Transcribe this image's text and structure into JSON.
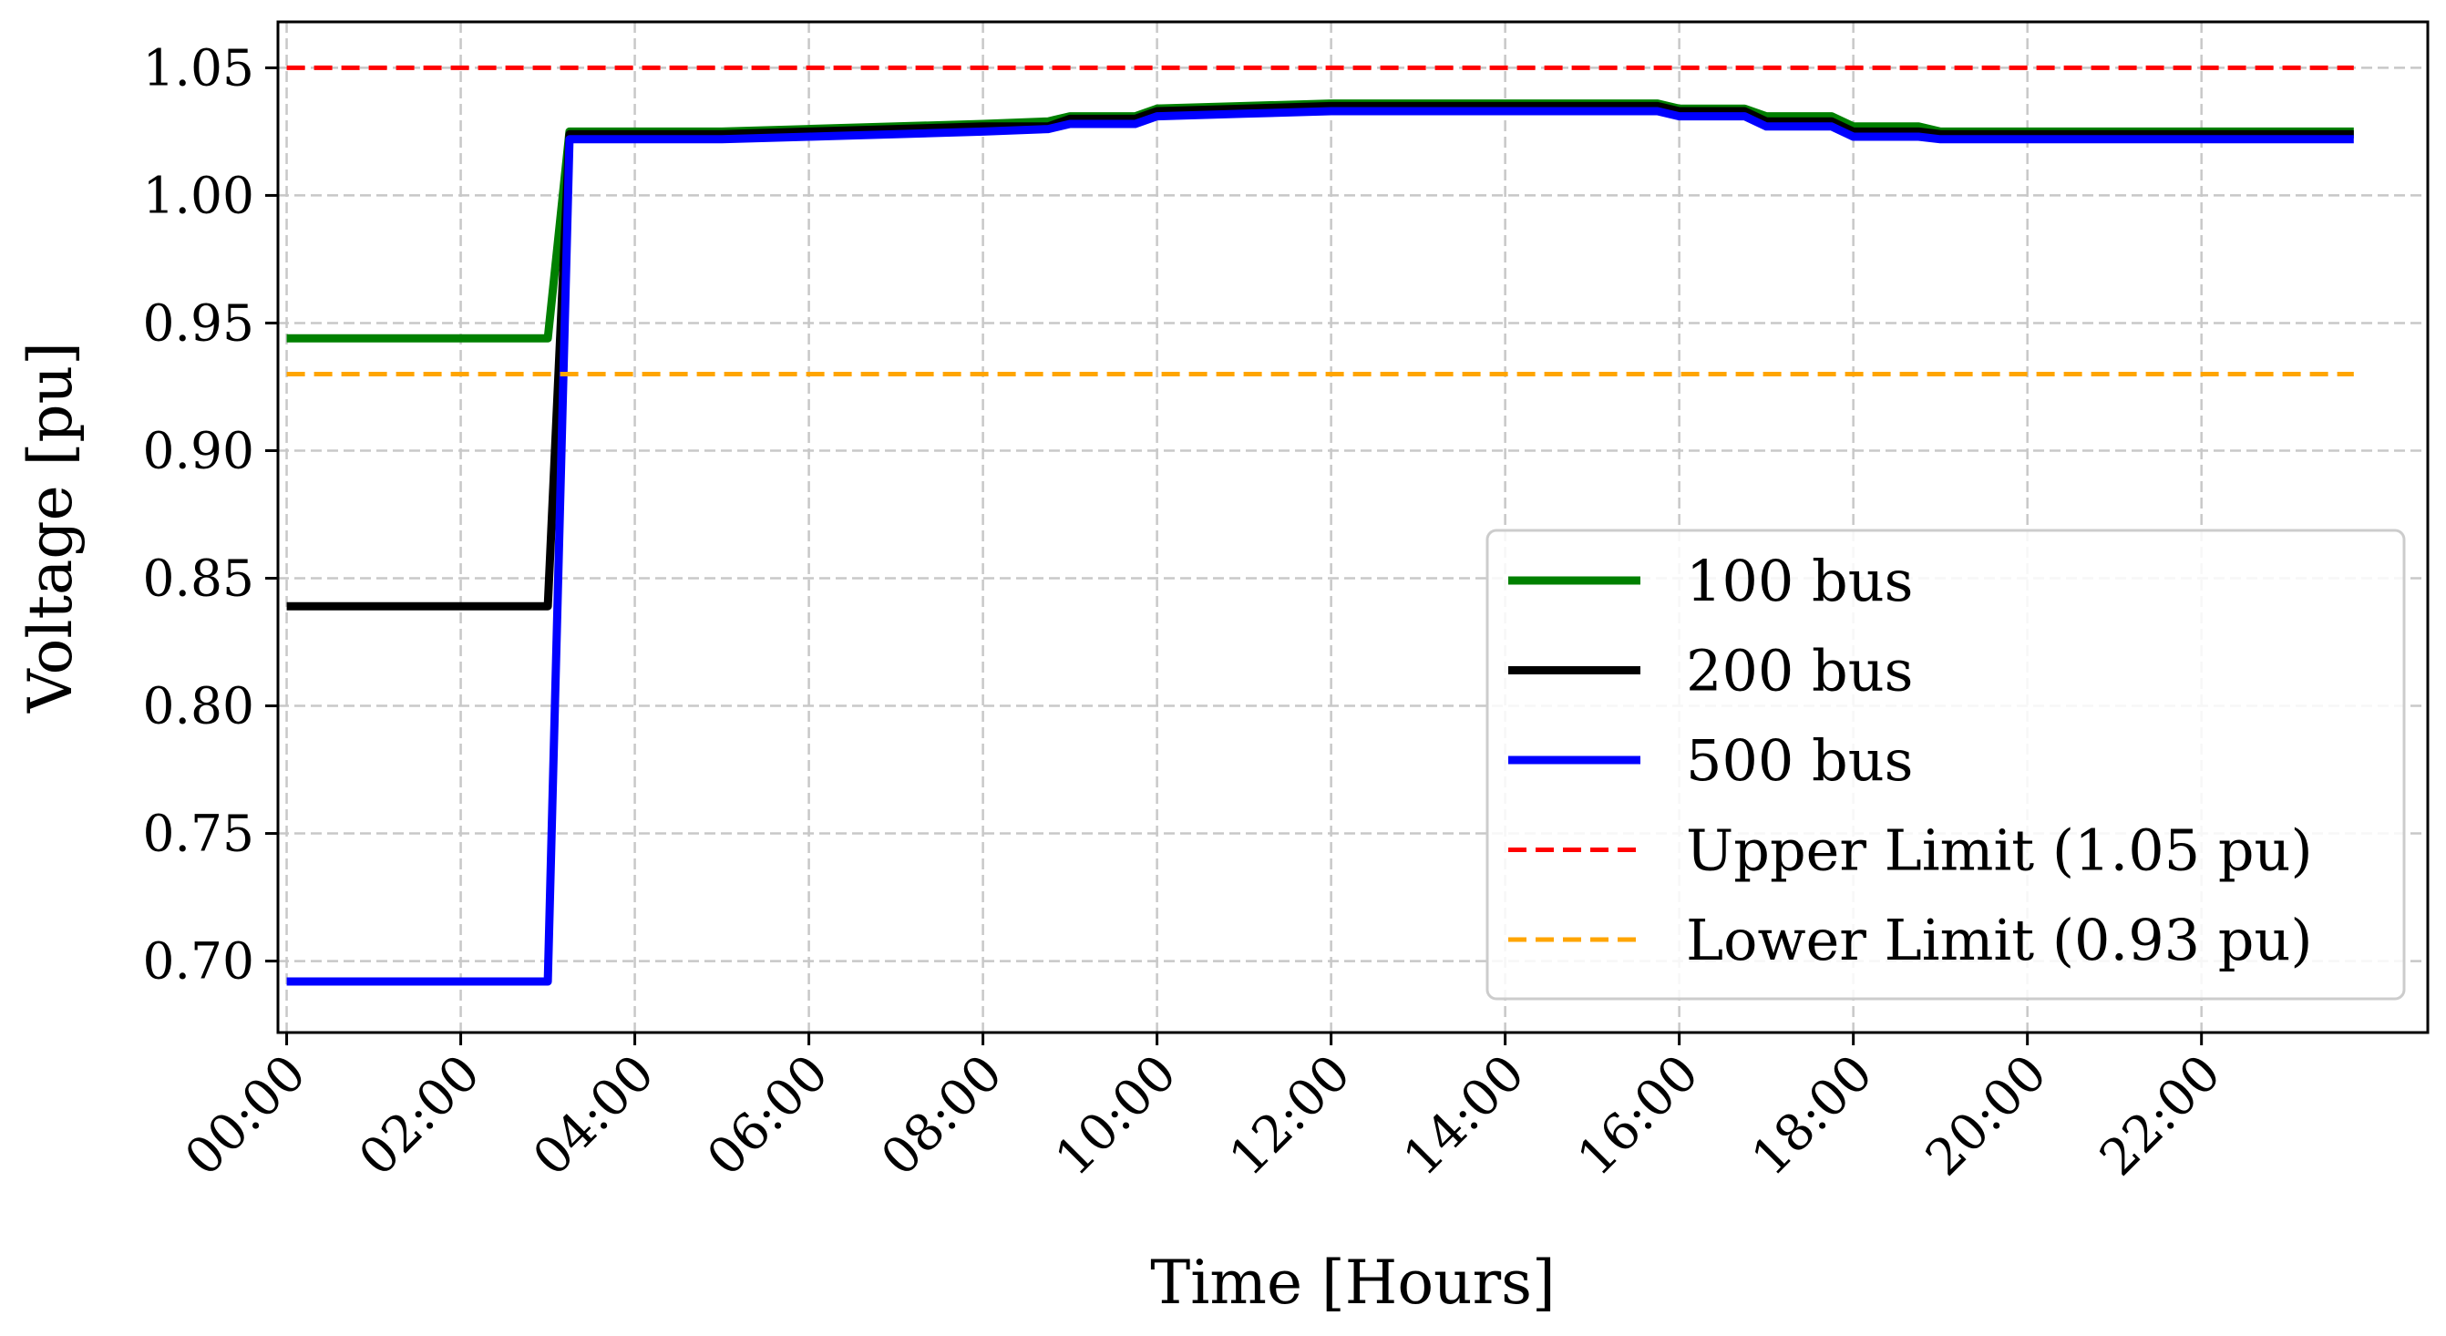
{
  "chart_data": {
    "type": "line",
    "xlabel": "Time [Hours]",
    "ylabel": "Voltage [pu]",
    "x_unit": "hours",
    "xlim": [
      -0.1,
      24.6
    ],
    "ylim": [
      0.672,
      1.068
    ],
    "grid": true,
    "legend_position": "center-right",
    "x_ticks": [
      {
        "value": 0,
        "label": "00:00"
      },
      {
        "value": 2,
        "label": "02:00"
      },
      {
        "value": 4,
        "label": "04:00"
      },
      {
        "value": 6,
        "label": "06:00"
      },
      {
        "value": 8,
        "label": "08:00"
      },
      {
        "value": 10,
        "label": "10:00"
      },
      {
        "value": 12,
        "label": "12:00"
      },
      {
        "value": 14,
        "label": "14:00"
      },
      {
        "value": 16,
        "label": "16:00"
      },
      {
        "value": 18,
        "label": "18:00"
      },
      {
        "value": 20,
        "label": "20:00"
      },
      {
        "value": 22,
        "label": "22:00"
      }
    ],
    "y_ticks": [
      {
        "value": 0.7,
        "label": "0.70"
      },
      {
        "value": 0.75,
        "label": "0.75"
      },
      {
        "value": 0.8,
        "label": "0.80"
      },
      {
        "value": 0.85,
        "label": "0.85"
      },
      {
        "value": 0.9,
        "label": "0.90"
      },
      {
        "value": 0.95,
        "label": "0.95"
      },
      {
        "value": 1.0,
        "label": "1.00"
      },
      {
        "value": 1.05,
        "label": "1.05"
      }
    ],
    "series": [
      {
        "name": "100 bus",
        "color": "#008000",
        "style": "solid",
        "points": [
          [
            0,
            0.944
          ],
          [
            3,
            0.944
          ],
          [
            3.25,
            1.025
          ],
          [
            5,
            1.025
          ],
          [
            6,
            1.026
          ],
          [
            7,
            1.027
          ],
          [
            8,
            1.028
          ],
          [
            8.75,
            1.029
          ],
          [
            9,
            1.031
          ],
          [
            9.75,
            1.031
          ],
          [
            10,
            1.034
          ],
          [
            11,
            1.035
          ],
          [
            12,
            1.036
          ],
          [
            13,
            1.036
          ],
          [
            14,
            1.036
          ],
          [
            15,
            1.036
          ],
          [
            15.75,
            1.036
          ],
          [
            16,
            1.034
          ],
          [
            16.75,
            1.034
          ],
          [
            17,
            1.031
          ],
          [
            17.75,
            1.031
          ],
          [
            18,
            1.027
          ],
          [
            18.75,
            1.027
          ],
          [
            19,
            1.025
          ],
          [
            20,
            1.025
          ],
          [
            22,
            1.025
          ],
          [
            23.75,
            1.025
          ]
        ]
      },
      {
        "name": "200 bus",
        "color": "#000000",
        "style": "solid",
        "points": [
          [
            0,
            0.839
          ],
          [
            3,
            0.839
          ],
          [
            3.25,
            1.024
          ],
          [
            5,
            1.024
          ],
          [
            6,
            1.025
          ],
          [
            7,
            1.026
          ],
          [
            8,
            1.027
          ],
          [
            8.75,
            1.027
          ],
          [
            9,
            1.03
          ],
          [
            9.75,
            1.03
          ],
          [
            10,
            1.033
          ],
          [
            11,
            1.034
          ],
          [
            12,
            1.035
          ],
          [
            13,
            1.035
          ],
          [
            14,
            1.035
          ],
          [
            15,
            1.035
          ],
          [
            15.75,
            1.035
          ],
          [
            16,
            1.033
          ],
          [
            16.75,
            1.033
          ],
          [
            17,
            1.029
          ],
          [
            17.75,
            1.029
          ],
          [
            18,
            1.025
          ],
          [
            18.75,
            1.025
          ],
          [
            19,
            1.024
          ],
          [
            20,
            1.024
          ],
          [
            22,
            1.024
          ],
          [
            23.75,
            1.024
          ]
        ]
      },
      {
        "name": "500 bus",
        "color": "#0000ff",
        "style": "solid",
        "points": [
          [
            0,
            0.692
          ],
          [
            3,
            0.692
          ],
          [
            3.25,
            1.022
          ],
          [
            5,
            1.022
          ],
          [
            6,
            1.023
          ],
          [
            7,
            1.024
          ],
          [
            8,
            1.025
          ],
          [
            8.75,
            1.026
          ],
          [
            9,
            1.028
          ],
          [
            9.75,
            1.028
          ],
          [
            10,
            1.031
          ],
          [
            11,
            1.032
          ],
          [
            12,
            1.033
          ],
          [
            13,
            1.033
          ],
          [
            14,
            1.033
          ],
          [
            15,
            1.033
          ],
          [
            15.75,
            1.033
          ],
          [
            16,
            1.031
          ],
          [
            16.75,
            1.031
          ],
          [
            17,
            1.027
          ],
          [
            17.75,
            1.027
          ],
          [
            18,
            1.023
          ],
          [
            18.75,
            1.023
          ],
          [
            19,
            1.022
          ],
          [
            20,
            1.022
          ],
          [
            22,
            1.022
          ],
          [
            23.75,
            1.022
          ]
        ]
      },
      {
        "name": "Upper Limit (1.05 pu)",
        "color": "#ff0000",
        "style": "dashed",
        "points": [
          [
            0,
            1.05
          ],
          [
            23.75,
            1.05
          ]
        ]
      },
      {
        "name": "Lower Limit (0.93 pu)",
        "color": "#ffa500",
        "style": "dashed",
        "points": [
          [
            0,
            0.93
          ],
          [
            23.75,
            0.93
          ]
        ]
      }
    ]
  }
}
